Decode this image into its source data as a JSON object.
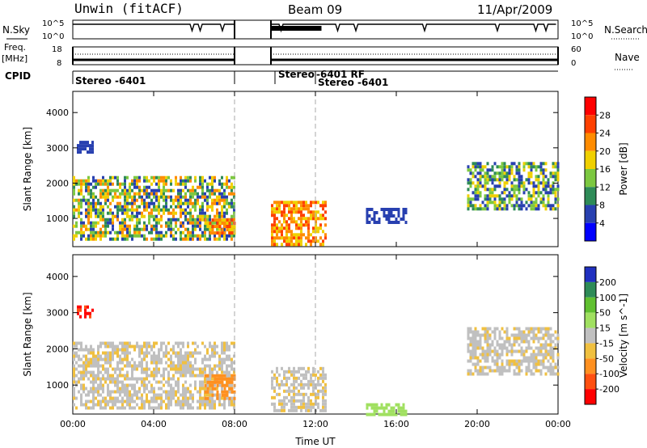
{
  "header": {
    "station": "Unwin (fitACF)",
    "beam": "Beam 09",
    "date": "11/Apr/2009"
  },
  "side_labels": {
    "nsky": "N.Sky",
    "freq_line1": "Freq.",
    "freq_line2": "[MHz]",
    "cpid": "CPID",
    "nsearch": "N.Search",
    "nave": "Nave"
  },
  "noise_panel": {
    "left_ticks": [
      "10^5",
      "10^0"
    ],
    "right_ticks": [
      "10^5",
      "10^0"
    ]
  },
  "freq_panel": {
    "left_ticks": [
      "18",
      "8"
    ],
    "right_ticks": [
      "60",
      "0"
    ]
  },
  "cpid_labels": [
    "Stereo -6401",
    "Stereo",
    "-6401 RF",
    "Stereo -6401"
  ],
  "chart_data": [
    {
      "type": "heatmap",
      "title": "",
      "parameter": "Power",
      "ylabel": "Slant Range [km]",
      "colorbar_label": "Power [dB]",
      "colorbar_ticks": [
        "28",
        "24",
        "20",
        "16",
        "12",
        "8",
        "4"
      ],
      "colors": [
        "#0000ff",
        "#2840b0",
        "#2e8b57",
        "#7cc840",
        "#f0d000",
        "#ff8c00",
        "#ff4000",
        "#ff0000"
      ],
      "ylim": [
        200,
        4600
      ],
      "y_ticks": [
        "4000",
        "3000",
        "2000",
        "1000"
      ],
      "x_ticks": [
        "00:00",
        "04:00",
        "08:00",
        "12:00",
        "16:00",
        "20:00",
        "00:00"
      ],
      "xlim_hours": [
        0,
        24
      ],
      "data_gap_hours": [
        8.0,
        9.8
      ],
      "echo_regions": [
        {
          "t": [
            0,
            8
          ],
          "range_km": [
            400,
            2200
          ],
          "level_db": [
            4,
            24
          ]
        },
        {
          "t": [
            0.2,
            1
          ],
          "range_km": [
            2900,
            3200
          ],
          "level_db": [
            4,
            8
          ]
        },
        {
          "t": [
            6.5,
            8
          ],
          "range_km": [
            600,
            1000
          ],
          "level_db": [
            16,
            28
          ]
        },
        {
          "t": [
            9.8,
            12.5
          ],
          "range_km": [
            300,
            1500
          ],
          "level_db": [
            16,
            28
          ]
        },
        {
          "t": [
            14.5,
            16.5
          ],
          "range_km": [
            900,
            1300
          ],
          "level_db": [
            4,
            8
          ]
        },
        {
          "t": [
            19.5,
            24
          ],
          "range_km": [
            1300,
            2600
          ],
          "level_db": [
            4,
            20
          ]
        }
      ]
    },
    {
      "type": "heatmap",
      "title": "",
      "parameter": "Velocity",
      "ylabel": "Slant Range [km]",
      "xlabel": "Time UT",
      "colorbar_label": "Velocity [m s^-1]",
      "colorbar_ticks": [
        "200",
        "100",
        "50",
        "15",
        "-15",
        "-50",
        "-100",
        "-200"
      ],
      "colors": [
        "#2030c0",
        "#2e8b57",
        "#60c030",
        "#a0e060",
        "#c0c0c0",
        "#f0c040",
        "#ff9020",
        "#ff5010",
        "#ff0000"
      ],
      "ylim": [
        200,
        4600
      ],
      "y_ticks": [
        "4000",
        "3000",
        "2000",
        "1000"
      ],
      "x_ticks": [
        "00:00",
        "04:00",
        "08:00",
        "12:00",
        "16:00",
        "20:00",
        "00:00"
      ],
      "xlim_hours": [
        0,
        24
      ],
      "data_gap_hours": [
        8.0,
        9.8
      ],
      "echo_regions": [
        {
          "t": [
            0,
            8
          ],
          "range_km": [
            400,
            2200
          ],
          "velocity": -10
        },
        {
          "t": [
            0.2,
            1
          ],
          "range_km": [
            2900,
            3200
          ],
          "velocity": -200
        },
        {
          "t": [
            6.5,
            8
          ],
          "range_km": [
            600,
            1300
          ],
          "velocity": -60
        },
        {
          "t": [
            9.8,
            12.5
          ],
          "range_km": [
            300,
            1500
          ],
          "velocity": -10
        },
        {
          "t": [
            14.5,
            16.5
          ],
          "range_km": [
            200,
            500
          ],
          "velocity": 30
        },
        {
          "t": [
            19.5,
            24
          ],
          "range_km": [
            1300,
            2600
          ],
          "velocity": -10
        }
      ]
    }
  ]
}
